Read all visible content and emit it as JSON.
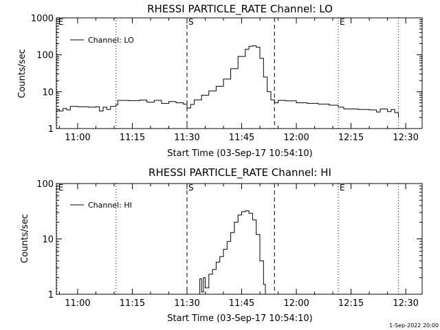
{
  "chart_data": [
    {
      "type": "line",
      "title": "RHESSI PARTICLE_RATE Channel: LO",
      "xlabel": "Start Time (03-Sep-17 10:54:10)",
      "ylabel": "Counts/sec",
      "y_scale": "log",
      "ylim": [
        1,
        1000
      ],
      "xlim": [
        "10:54:10",
        "12:34:30"
      ],
      "x_tick_labels": [
        "11:00",
        "11:15",
        "11:30",
        "11:45",
        "12:00",
        "12:15",
        "12:30"
      ],
      "y_tick_labels": [
        "1",
        "10",
        "100",
        "1000"
      ],
      "legend": {
        "entries": [
          "Channel: LO"
        ],
        "placement": "top-left"
      },
      "markers": [
        {
          "label": "E",
          "time": "10:54:20",
          "style": "dotted"
        },
        {
          "label": "",
          "time": "11:10:30",
          "style": "dotted"
        },
        {
          "label": "S",
          "time": "11:30:00",
          "style": "dashed"
        },
        {
          "label": "",
          "time": "11:54:00",
          "style": "dashed"
        },
        {
          "label": "E",
          "time": "12:11:30",
          "style": "dotted"
        },
        {
          "label": "",
          "time": "12:28:00",
          "style": "dotted"
        }
      ],
      "series": [
        {
          "name": "Channel: LO",
          "points": [
            [
              "10:54:10",
              3.3
            ],
            [
              "10:55:00",
              3.0
            ],
            [
              "10:56:00",
              3.5
            ],
            [
              "10:57:00",
              3.2
            ],
            [
              "10:58:00",
              4.0
            ],
            [
              "11:00:00",
              3.9
            ],
            [
              "11:03:00",
              3.8
            ],
            [
              "11:05:00",
              3.9
            ],
            [
              "11:06:00",
              3.0
            ],
            [
              "11:07:00",
              3.8
            ],
            [
              "11:08:00",
              3.3
            ],
            [
              "11:09:00",
              4.0
            ],
            [
              "11:10:30",
              4.4
            ],
            [
              "11:11:00",
              5.8
            ],
            [
              "11:14:00",
              5.7
            ],
            [
              "11:17:00",
              5.9
            ],
            [
              "11:19:00",
              5.2
            ],
            [
              "11:21:00",
              5.8
            ],
            [
              "11:23:00",
              4.8
            ],
            [
              "11:25:00",
              5.4
            ],
            [
              "11:27:00",
              5.0
            ],
            [
              "11:29:00",
              4.6
            ],
            [
              "11:30:00",
              3.6
            ],
            [
              "11:31:00",
              4.5
            ],
            [
              "11:32:00",
              6.0
            ],
            [
              "11:34:00",
              8.0
            ],
            [
              "11:36:00",
              10.5
            ],
            [
              "11:38:00",
              14.0
            ],
            [
              "11:40:00",
              22.0
            ],
            [
              "11:42:00",
              42.0
            ],
            [
              "11:44:00",
              90.0
            ],
            [
              "11:46:00",
              140.0
            ],
            [
              "11:47:00",
              170.0
            ],
            [
              "11:48:00",
              175.0
            ],
            [
              "11:49:00",
              160.0
            ],
            [
              "11:50:00",
              80.0
            ],
            [
              "11:51:00",
              25.0
            ],
            [
              "11:52:00",
              10.0
            ],
            [
              "11:53:00",
              6.0
            ],
            [
              "11:54:00",
              5.0
            ],
            [
              "11:55:00",
              5.8
            ],
            [
              "11:57:00",
              5.6
            ],
            [
              "12:00:00",
              5.0
            ],
            [
              "12:03:00",
              4.8
            ],
            [
              "12:06:00",
              4.6
            ],
            [
              "12:09:00",
              4.3
            ],
            [
              "12:11:30",
              3.8
            ],
            [
              "12:13:00",
              3.4
            ],
            [
              "12:17:00",
              3.3
            ],
            [
              "12:20:00",
              3.2
            ],
            [
              "12:22:00",
              2.8
            ],
            [
              "12:23:00",
              3.4
            ],
            [
              "12:25:00",
              2.9
            ],
            [
              "12:26:00",
              3.3
            ],
            [
              "12:27:00",
              2.7
            ],
            [
              "12:28:00",
              2.0
            ]
          ]
        }
      ]
    },
    {
      "type": "line",
      "title": "RHESSI PARTICLE_RATE Channel: HI",
      "xlabel": "Start Time (03-Sep-17 10:54:10)",
      "ylabel": "Counts/sec",
      "y_scale": "log",
      "ylim": [
        1,
        100
      ],
      "xlim": [
        "10:54:10",
        "12:34:30"
      ],
      "x_tick_labels": [
        "11:00",
        "11:15",
        "11:30",
        "11:45",
        "12:00",
        "12:15",
        "12:30"
      ],
      "y_tick_labels": [
        "1",
        "10",
        "100"
      ],
      "legend": {
        "entries": [
          "Channel: HI"
        ],
        "placement": "top-left"
      },
      "markers": [
        {
          "label": "E",
          "time": "10:54:20",
          "style": "dotted"
        },
        {
          "label": "",
          "time": "11:10:30",
          "style": "dotted"
        },
        {
          "label": "S",
          "time": "11:30:00",
          "style": "dashed"
        },
        {
          "label": "",
          "time": "11:54:00",
          "style": "dashed"
        },
        {
          "label": "E",
          "time": "12:11:30",
          "style": "dotted"
        },
        {
          "label": "",
          "time": "12:28:00",
          "style": "dotted"
        }
      ],
      "series": [
        {
          "name": "Channel: HI",
          "points": [
            [
              "11:33:00",
              1.0
            ],
            [
              "11:33:30",
              1.9
            ],
            [
              "11:34:00",
              1.1
            ],
            [
              "11:34:30",
              2.0
            ],
            [
              "11:35:00",
              1.3
            ],
            [
              "11:36:00",
              2.3
            ],
            [
              "11:37:00",
              2.8
            ],
            [
              "11:38:00",
              3.8
            ],
            [
              "11:39:00",
              4.8
            ],
            [
              "11:40:00",
              6.5
            ],
            [
              "11:41:00",
              9.0
            ],
            [
              "11:42:00",
              13.0
            ],
            [
              "11:43:00",
              20.0
            ],
            [
              "11:44:00",
              27.0
            ],
            [
              "11:45:00",
              31.0
            ],
            [
              "11:46:00",
              32.0
            ],
            [
              "11:47:00",
              29.0
            ],
            [
              "11:48:00",
              22.0
            ],
            [
              "11:49:00",
              12.0
            ],
            [
              "11:50:00",
              4.0
            ],
            [
              "11:51:00",
              1.5
            ],
            [
              "11:51:30",
              1.0
            ]
          ]
        }
      ]
    }
  ],
  "timestamp": "1-Sep-2022 20:00"
}
